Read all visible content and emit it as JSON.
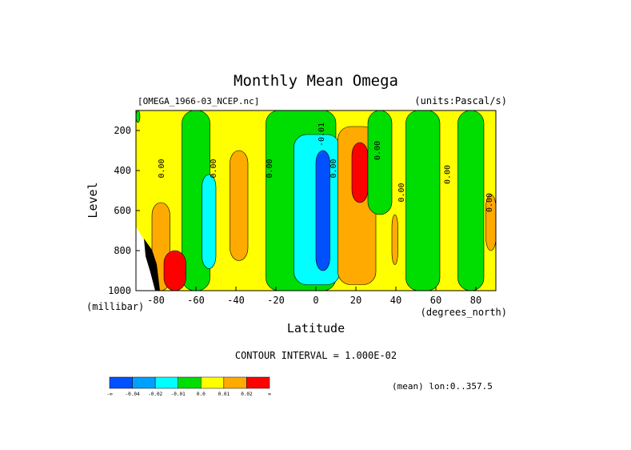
{
  "chart_data": {
    "type": "heatmap",
    "title": "Monthly Mean Omega",
    "file_label": "[OMEGA_1966-03_NCEP.nc]",
    "units_label": "(units:Pascal/s)",
    "xlabel": "Latitude",
    "x_units": "(degrees_north)",
    "ylabel": "Level",
    "y_units": "(millibar)",
    "xlim": [
      -90,
      90
    ],
    "ylim": [
      1000,
      100
    ],
    "x_ticks": [
      -80,
      -60,
      -40,
      -20,
      0,
      20,
      40,
      60,
      80
    ],
    "y_ticks": [
      200,
      400,
      600,
      800,
      1000
    ],
    "contour_interval_text": "CONTOUR INTERVAL = 1.000E-02",
    "mean_text": "(mean) lon:0..357.5",
    "colorbar": {
      "ticks": [
        "-∞",
        "-0.04",
        "-0.02",
        "-0.01",
        "0.0",
        "0.01",
        "0.02",
        "∞"
      ],
      "colors": [
        "#0050ff",
        "#00a0ff",
        "#00ffff",
        "#00dd00",
        "#ffff00",
        "#ffaa00",
        "#ff0000"
      ]
    },
    "regions": [
      {
        "fill": "#00dd00",
        "lat_range": [
          -90,
          -88
        ],
        "level_range": [
          100,
          160
        ]
      },
      {
        "fill": "#00dd00",
        "lat_range": [
          -67,
          -53
        ],
        "level_range": [
          100,
          1000
        ]
      },
      {
        "fill": "#00ffff",
        "lat_range": [
          -57,
          -50
        ],
        "level_range": [
          420,
          890
        ]
      },
      {
        "fill": "#ffaa00",
        "lat_range": [
          -43,
          -34
        ],
        "level_range": [
          300,
          850
        ]
      },
      {
        "fill": "#00dd00",
        "lat_range": [
          -25,
          10
        ],
        "level_range": [
          100,
          1000
        ]
      },
      {
        "fill": "#00ffff",
        "lat_range": [
          -11,
          12
        ],
        "level_range": [
          220,
          970
        ]
      },
      {
        "fill": "#0050ff",
        "lat_range": [
          0,
          7
        ],
        "level_range": [
          300,
          900
        ]
      },
      {
        "fill": "#ffaa00",
        "lat_range": [
          11,
          30
        ],
        "level_range": [
          180,
          970
        ]
      },
      {
        "fill": "#ff0000",
        "lat_range": [
          18,
          26
        ],
        "level_range": [
          260,
          560
        ]
      },
      {
        "fill": "#00dd00",
        "lat_range": [
          26,
          38
        ],
        "level_range": [
          100,
          620
        ]
      },
      {
        "fill": "#00dd00",
        "lat_range": [
          45,
          62
        ],
        "level_range": [
          100,
          1000
        ]
      },
      {
        "fill": "#00dd00",
        "lat_range": [
          71,
          84
        ],
        "level_range": [
          100,
          1000
        ]
      },
      {
        "fill": "#ffaa00",
        "lat_range": [
          -82,
          -73
        ],
        "level_range": [
          560,
          1000
        ]
      },
      {
        "fill": "#ff0000",
        "lat_range": [
          -76,
          -65
        ],
        "level_range": [
          800,
          1000
        ]
      },
      {
        "fill": "#ffaa00",
        "lat_range": [
          85,
          90
        ],
        "level_range": [
          520,
          800
        ]
      },
      {
        "fill": "#ffaa00",
        "lat_range": [
          38,
          41
        ],
        "level_range": [
          620,
          870
        ]
      }
    ],
    "contour_labels": [
      {
        "text": "0.00",
        "lat": -76,
        "level": 390
      },
      {
        "text": "0.00",
        "lat": -50,
        "level": 390
      },
      {
        "text": "0.00",
        "lat": -22,
        "level": 390
      },
      {
        "text": "-0.01",
        "lat": 4,
        "level": 220
      },
      {
        "text": "0.00",
        "lat": 10,
        "level": 390
      },
      {
        "text": "0.00",
        "lat": 32,
        "level": 300
      },
      {
        "text": "0.00",
        "lat": 44,
        "level": 510
      },
      {
        "text": "0.00",
        "lat": 67,
        "level": 420
      },
      {
        "text": "0.00",
        "lat": 88,
        "level": 560
      }
    ]
  }
}
